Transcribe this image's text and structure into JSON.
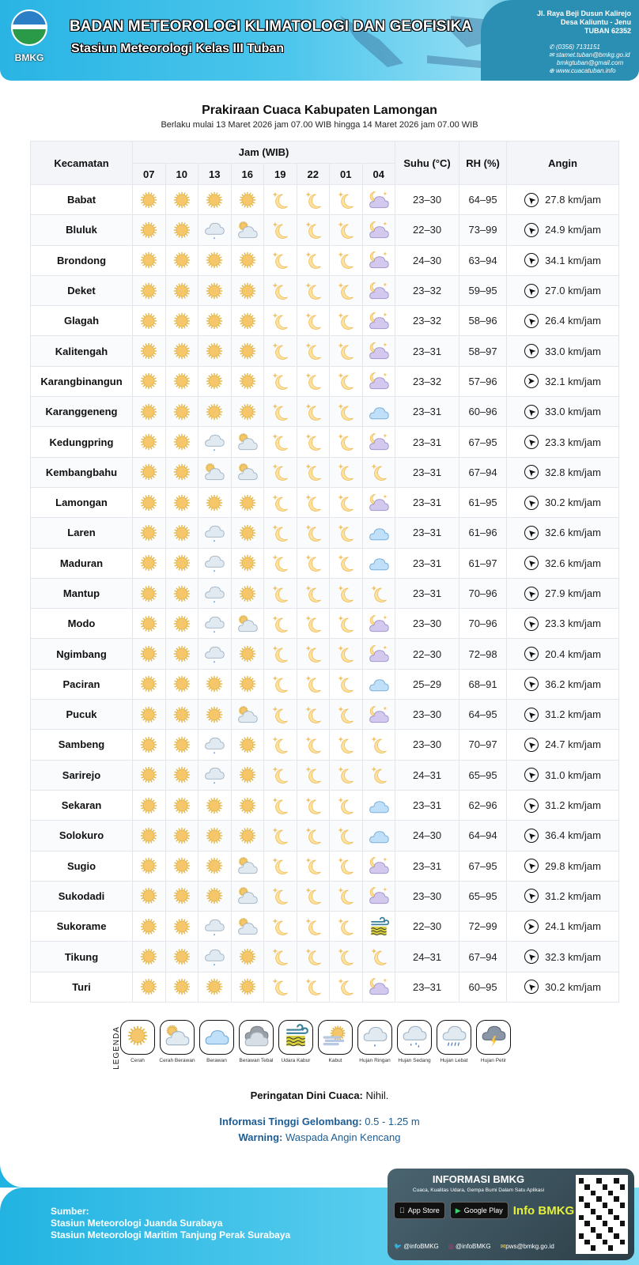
{
  "header": {
    "logo_text": "BMKG",
    "agency": "BADAN METEOROLOGI KLIMATOLOGI DAN GEOFISIKA",
    "station": "Stasiun Meteorologi Kelas III Tuban",
    "address": [
      "Jl. Raya Beji Dusun Kalirejo",
      "Desa Kaliuntu - Jenu",
      "TUBAN 62352"
    ],
    "phone": "(0356) 7131151",
    "email1": "stamet.tuban@bmkg.go.id",
    "email2": "bmkgtuban@gmail.com",
    "website": "www.cuacatuban.info"
  },
  "title": "Prakiraan Cuaca Kabupaten Lamongan",
  "subtitle": "Berlaku mulai 13 Maret 2026 jam 07.00 WIB hingga 14 Maret 2026 jam 07.00 WIB",
  "table": {
    "col_kecamatan": "Kecamatan",
    "col_jam": "Jam (WIB)",
    "hours": [
      "07",
      "10",
      "13",
      "16",
      "19",
      "22",
      "01",
      "04"
    ],
    "col_suhu": "Suhu (°C)",
    "col_rh": "RH (%)",
    "col_angin": "Angin",
    "icon_codes": {
      "S": "cerah",
      "N": "cerah-malam",
      "NC": "cerah-berawan-malam",
      "PC": "cerah-berawan",
      "C": "berawan",
      "R": "hujan-ringan",
      "F": "udara-kabur"
    },
    "rows": [
      {
        "name": "Babat",
        "icons": [
          "S",
          "S",
          "S",
          "S",
          "N",
          "N",
          "N",
          "NC"
        ],
        "suhu": "23–30",
        "rh": "64–95",
        "wind": "27.8 km/jam",
        "wind_dir": "NW"
      },
      {
        "name": "Bluluk",
        "icons": [
          "S",
          "S",
          "R",
          "PC",
          "N",
          "N",
          "N",
          "NC"
        ],
        "suhu": "22–30",
        "rh": "73–99",
        "wind": "24.9 km/jam",
        "wind_dir": "NW"
      },
      {
        "name": "Brondong",
        "icons": [
          "S",
          "S",
          "S",
          "S",
          "N",
          "N",
          "N",
          "NC"
        ],
        "suhu": "24–30",
        "rh": "63–94",
        "wind": "34.1 km/jam",
        "wind_dir": "NW"
      },
      {
        "name": "Deket",
        "icons": [
          "S",
          "S",
          "S",
          "S",
          "N",
          "N",
          "N",
          "NC"
        ],
        "suhu": "23–32",
        "rh": "59–95",
        "wind": "27.0 km/jam",
        "wind_dir": "NW"
      },
      {
        "name": "Glagah",
        "icons": [
          "S",
          "S",
          "S",
          "S",
          "N",
          "N",
          "N",
          "NC"
        ],
        "suhu": "23–32",
        "rh": "58–96",
        "wind": "26.4 km/jam",
        "wind_dir": "NW"
      },
      {
        "name": "Kalitengah",
        "icons": [
          "S",
          "S",
          "S",
          "S",
          "N",
          "N",
          "N",
          "NC"
        ],
        "suhu": "23–31",
        "rh": "58–97",
        "wind": "33.0 km/jam",
        "wind_dir": "NW"
      },
      {
        "name": "Karangbinangun",
        "icons": [
          "S",
          "S",
          "S",
          "S",
          "N",
          "N",
          "N",
          "NC"
        ],
        "suhu": "23–32",
        "rh": "57–96",
        "wind": "32.1 km/jam",
        "wind_dir": "E"
      },
      {
        "name": "Karanggeneng",
        "icons": [
          "S",
          "S",
          "S",
          "S",
          "N",
          "N",
          "N",
          "C"
        ],
        "suhu": "23–31",
        "rh": "60–96",
        "wind": "33.0 km/jam",
        "wind_dir": "NW"
      },
      {
        "name": "Kedungpring",
        "icons": [
          "S",
          "S",
          "R",
          "PC",
          "N",
          "N",
          "N",
          "NC"
        ],
        "suhu": "23–31",
        "rh": "67–95",
        "wind": "23.3 km/jam",
        "wind_dir": "NW"
      },
      {
        "name": "Kembangbahu",
        "icons": [
          "S",
          "S",
          "PC",
          "PC",
          "N",
          "N",
          "N",
          "N"
        ],
        "suhu": "23–31",
        "rh": "67–94",
        "wind": "32.8 km/jam",
        "wind_dir": "NW"
      },
      {
        "name": "Lamongan",
        "icons": [
          "S",
          "S",
          "S",
          "S",
          "N",
          "N",
          "N",
          "NC"
        ],
        "suhu": "23–31",
        "rh": "61–95",
        "wind": "30.2 km/jam",
        "wind_dir": "NW"
      },
      {
        "name": "Laren",
        "icons": [
          "S",
          "S",
          "R",
          "S",
          "N",
          "N",
          "N",
          "C"
        ],
        "suhu": "23–31",
        "rh": "61–96",
        "wind": "32.6 km/jam",
        "wind_dir": "NW"
      },
      {
        "name": "Maduran",
        "icons": [
          "S",
          "S",
          "R",
          "S",
          "N",
          "N",
          "N",
          "C"
        ],
        "suhu": "23–31",
        "rh": "61–97",
        "wind": "32.6 km/jam",
        "wind_dir": "NW"
      },
      {
        "name": "Mantup",
        "icons": [
          "S",
          "S",
          "R",
          "S",
          "N",
          "N",
          "N",
          "N"
        ],
        "suhu": "23–31",
        "rh": "70–96",
        "wind": "27.9 km/jam",
        "wind_dir": "NW"
      },
      {
        "name": "Modo",
        "icons": [
          "S",
          "S",
          "R",
          "PC",
          "N",
          "N",
          "N",
          "NC"
        ],
        "suhu": "23–30",
        "rh": "70–96",
        "wind": "23.3 km/jam",
        "wind_dir": "NW"
      },
      {
        "name": "Ngimbang",
        "icons": [
          "S",
          "S",
          "R",
          "S",
          "N",
          "N",
          "N",
          "NC"
        ],
        "suhu": "22–30",
        "rh": "72–98",
        "wind": "20.4 km/jam",
        "wind_dir": "NW"
      },
      {
        "name": "Paciran",
        "icons": [
          "S",
          "S",
          "S",
          "S",
          "N",
          "N",
          "N",
          "C"
        ],
        "suhu": "25–29",
        "rh": "68–91",
        "wind": "36.2 km/jam",
        "wind_dir": "NW"
      },
      {
        "name": "Pucuk",
        "icons": [
          "S",
          "S",
          "S",
          "PC",
          "N",
          "N",
          "N",
          "NC"
        ],
        "suhu": "23–30",
        "rh": "64–95",
        "wind": "31.2 km/jam",
        "wind_dir": "NW"
      },
      {
        "name": "Sambeng",
        "icons": [
          "S",
          "S",
          "R",
          "S",
          "N",
          "N",
          "N",
          "N"
        ],
        "suhu": "23–30",
        "rh": "70–97",
        "wind": "24.7 km/jam",
        "wind_dir": "NW"
      },
      {
        "name": "Sarirejo",
        "icons": [
          "S",
          "S",
          "R",
          "S",
          "N",
          "N",
          "N",
          "N"
        ],
        "suhu": "24–31",
        "rh": "65–95",
        "wind": "31.0 km/jam",
        "wind_dir": "NW"
      },
      {
        "name": "Sekaran",
        "icons": [
          "S",
          "S",
          "S",
          "S",
          "N",
          "N",
          "N",
          "C"
        ],
        "suhu": "23–31",
        "rh": "62–96",
        "wind": "31.2 km/jam",
        "wind_dir": "NW"
      },
      {
        "name": "Solokuro",
        "icons": [
          "S",
          "S",
          "S",
          "S",
          "N",
          "N",
          "N",
          "C"
        ],
        "suhu": "24–30",
        "rh": "64–94",
        "wind": "36.4 km/jam",
        "wind_dir": "NW"
      },
      {
        "name": "Sugio",
        "icons": [
          "S",
          "S",
          "S",
          "PC",
          "N",
          "N",
          "N",
          "NC"
        ],
        "suhu": "23–31",
        "rh": "67–95",
        "wind": "29.8 km/jam",
        "wind_dir": "NW"
      },
      {
        "name": "Sukodadi",
        "icons": [
          "S",
          "S",
          "S",
          "PC",
          "N",
          "N",
          "N",
          "NC"
        ],
        "suhu": "23–30",
        "rh": "65–95",
        "wind": "31.2 km/jam",
        "wind_dir": "NW"
      },
      {
        "name": "Sukorame",
        "icons": [
          "S",
          "S",
          "R",
          "PC",
          "N",
          "N",
          "N",
          "F"
        ],
        "suhu": "22–30",
        "rh": "72–99",
        "wind": "24.1 km/jam",
        "wind_dir": "E"
      },
      {
        "name": "Tikung",
        "icons": [
          "S",
          "S",
          "R",
          "S",
          "N",
          "N",
          "N",
          "N"
        ],
        "suhu": "24–31",
        "rh": "67–94",
        "wind": "32.3 km/jam",
        "wind_dir": "NW"
      },
      {
        "name": "Turi",
        "icons": [
          "S",
          "S",
          "S",
          "S",
          "N",
          "N",
          "N",
          "NC"
        ],
        "suhu": "23–31",
        "rh": "60–95",
        "wind": "30.2 km/jam",
        "wind_dir": "NW"
      }
    ]
  },
  "legend": {
    "label": "LEGENDA",
    "items": [
      {
        "icon": "S",
        "label": "Cerah"
      },
      {
        "icon": "PC",
        "label": "Cerah Berawan"
      },
      {
        "icon": "C",
        "label": "Berawan"
      },
      {
        "icon": "HC",
        "label": "Berawan Tebal"
      },
      {
        "icon": "F",
        "label": "Udara Kabur"
      },
      {
        "icon": "K",
        "label": "Kabut"
      },
      {
        "icon": "R",
        "label": "Hujan Ringan"
      },
      {
        "icon": "RS",
        "label": "Hujan Sedang"
      },
      {
        "icon": "RL",
        "label": "Hujan Lebat"
      },
      {
        "icon": "T",
        "label": "Hujan Petir"
      }
    ]
  },
  "warnings": {
    "peringatan_label": "Peringatan Dini Cuaca:",
    "peringatan_value": "Nihil.",
    "gelombang_label": "Informasi Tinggi Gelombang:",
    "gelombang_value": "0.5 - 1.25 m",
    "warning_label": "Warning:",
    "warning_value": "Waspada Angin Kencang"
  },
  "footer": {
    "sumber_label": "Sumber:",
    "sources": [
      "Stasiun Meteorologi Juanda Surabaya",
      "Stasiun Meteorologi Maritim Tanjung Perak Surabaya"
    ],
    "info_title": "INFORMASI BMKG",
    "info_sub": "Cuaca, Kualitas Udara, Gempa Bumi Dalam Satu Aplikasi",
    "app_store": "App Store",
    "google_play": "Google Play",
    "info_bmkg": "Info BMKG",
    "twitter": "@infoBMKG",
    "instagram": "@infoBMKG",
    "email": "pws@bmkg.go.id"
  },
  "colors": {
    "banner": "#29b4e4",
    "title_blue": "#1d5d93",
    "header_bg": "#f3f5f8"
  }
}
